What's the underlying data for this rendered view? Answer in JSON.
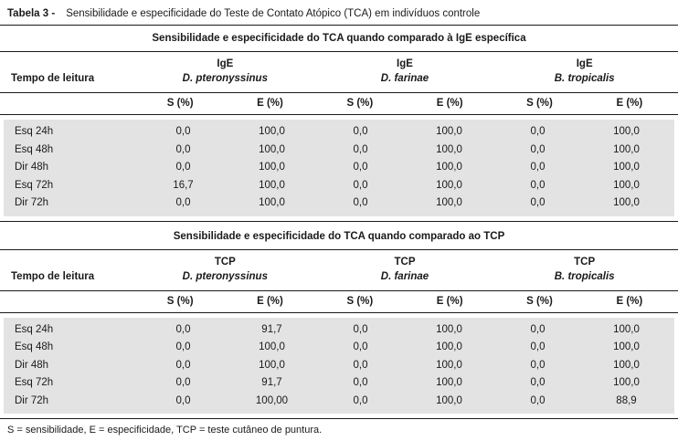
{
  "caption": {
    "label": "Tabela 3 -",
    "text": "Sensibilidade e especificidade do Teste de Contato Atópico (TCA) em indivíduos controle"
  },
  "row_header": "Tempo de leitura",
  "subheaders": [
    "S (%)",
    "E (%)",
    "S (%)",
    "E (%)",
    "S (%)",
    "E (%)"
  ],
  "tables": [
    {
      "banner": "Sensibilidade e especificidade do TCA quando comparado à IgE específica",
      "groups": [
        {
          "test": "IgE",
          "allergen": "D. pteronyssinus"
        },
        {
          "test": "IgE",
          "allergen": "D. farinae"
        },
        {
          "test": "IgE",
          "allergen": "B. tropicalis"
        }
      ],
      "rows": [
        {
          "label": "Esq 24h",
          "values": [
            "0,0",
            "100,0",
            "0,0",
            "100,0",
            "0,0",
            "100,0"
          ]
        },
        {
          "label": "Esq 48h",
          "values": [
            "0,0",
            "100,0",
            "0,0",
            "100,0",
            "0,0",
            "100,0"
          ]
        },
        {
          "label": "Dir 48h",
          "values": [
            "0,0",
            "100,0",
            "0,0",
            "100,0",
            "0,0",
            "100,0"
          ]
        },
        {
          "label": "Esq 72h",
          "values": [
            "16,7",
            "100,0",
            "0,0",
            "100,0",
            "0,0",
            "100,0"
          ]
        },
        {
          "label": "Dir 72h",
          "values": [
            "0,0",
            "100,0",
            "0,0",
            "100,0",
            "0,0",
            "100,0"
          ]
        }
      ]
    },
    {
      "banner": "Sensibilidade e especificidade do TCA quando comparado ao TCP",
      "groups": [
        {
          "test": "TCP",
          "allergen": "D. pteronyssinus"
        },
        {
          "test": "TCP",
          "allergen": "D. farinae"
        },
        {
          "test": "TCP",
          "allergen": "B. tropicalis"
        }
      ],
      "rows": [
        {
          "label": "Esq 24h",
          "values": [
            "0,0",
            "91,7",
            "0,0",
            "100,0",
            "0,0",
            "100,0"
          ]
        },
        {
          "label": "Esq 48h",
          "values": [
            "0,0",
            "100,0",
            "0,0",
            "100,0",
            "0,0",
            "100,0"
          ]
        },
        {
          "label": "Dir 48h",
          "values": [
            "0,0",
            "100,0",
            "0,0",
            "100,0",
            "0,0",
            "100,0"
          ]
        },
        {
          "label": "Esq 72h",
          "values": [
            "0,0",
            "91,7",
            "0,0",
            "100,0",
            "0,0",
            "100,0"
          ]
        },
        {
          "label": "Dir 72h",
          "values": [
            "0,0",
            "100,00",
            "0,0",
            "100,0",
            "0,0",
            "88,9"
          ]
        }
      ]
    }
  ],
  "footnote": "S = sensibilidade, E = especificidade, TCP = teste cutâneo de puntura.",
  "colors": {
    "band_background": "#e3e3e3",
    "rule": "#1a1a1a",
    "text": "#1a1a1a"
  }
}
